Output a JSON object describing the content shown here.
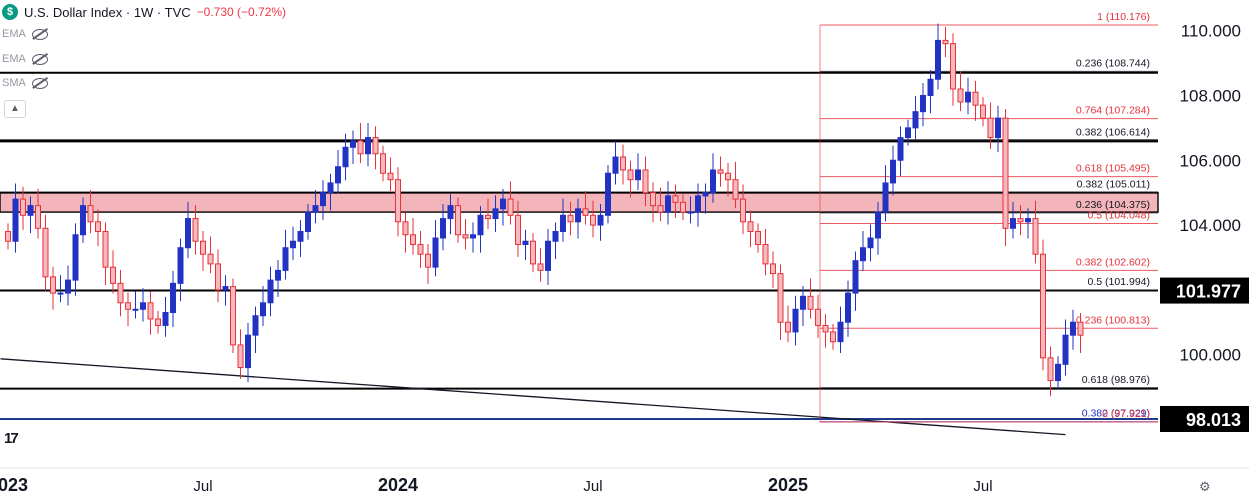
{
  "header": {
    "symbol_line": "U.S. Dollar Index · 1W · TVC",
    "change": "−0.730 (−0.72%)",
    "logo_letter": "$"
  },
  "indicators": [
    "EMA",
    "EMA",
    "SMA"
  ],
  "tv_logo": "17",
  "colors": {
    "up": "#2233c4",
    "down": "#e5323b",
    "zone": "#f2a8ae",
    "fib_red": "#e5323b",
    "fib_black": "#000000",
    "fib_blue": "#2233c4"
  },
  "chart_data": {
    "type": "candlestick",
    "ylim": [
      96.5,
      110.7
    ],
    "y_ticks": [
      "110.000",
      "108.000",
      "106.000",
      "104.000",
      "100.000"
    ],
    "x_ticks": [
      {
        "label": "2023",
        "i": 0
      },
      {
        "label": "Jul",
        "i": 26
      },
      {
        "label": "2024",
        "i": 52
      },
      {
        "label": "Jul",
        "i": 78
      },
      {
        "label": "2025",
        "i": 104
      },
      {
        "label": "Jul",
        "i": 130
      }
    ],
    "price_badges": [
      "101.977",
      "98.013"
    ],
    "horizontal_levels": [
      108.7,
      106.6,
      105.0,
      101.98,
      98.95
    ],
    "zone": [
      104.4,
      105.0
    ],
    "support_level": 98.013,
    "trendline": {
      "from": {
        "i": -1,
        "y": 99.87
      },
      "to": {
        "i": 141,
        "y": 97.53
      }
    },
    "fib_levels": [
      {
        "label": "1 (110.176)",
        "value": 110.176,
        "color": "red"
      },
      {
        "label": "0.236 (108.744)",
        "value": 108.744,
        "color": "black"
      },
      {
        "label": "0.764 (107.284)",
        "value": 107.284,
        "color": "red"
      },
      {
        "label": "0.382 (106.614)",
        "value": 106.614,
        "color": "black"
      },
      {
        "label": "0.618 (105.495)",
        "value": 105.495,
        "color": "red"
      },
      {
        "label": "0.382 (105.011)",
        "value": 105.011,
        "color": "black"
      },
      {
        "label": "0.236 (104.375)",
        "value": 104.375,
        "color": "black"
      },
      {
        "label": "0.5 (104.048)",
        "value": 104.048,
        "color": "red"
      },
      {
        "label": "0.382 (102.602)",
        "value": 102.602,
        "color": "red"
      },
      {
        "label": "0.5 (101.994)",
        "value": 101.994,
        "color": "black"
      },
      {
        "label": "0.236 (100.813)",
        "value": 100.813,
        "color": "red"
      },
      {
        "label": "0.618 (98.976)",
        "value": 98.976,
        "color": "black"
      },
      {
        "label": "0.382 (97.929)",
        "value": 97.929,
        "color": "blue"
      },
      {
        "label": "0 (97.921)",
        "value": 97.921,
        "color": "red"
      }
    ],
    "close": [
      103.5,
      104.8,
      104.3,
      104.6,
      103.9,
      102.4,
      101.9,
      101.9,
      102.3,
      103.7,
      104.6,
      104.1,
      103.8,
      102.7,
      102.2,
      101.6,
      101.4,
      101.4,
      101.6,
      101.1,
      100.9,
      101.3,
      102.2,
      103.3,
      104.2,
      103.5,
      103.1,
      102.8,
      102.0,
      102.1,
      100.3,
      99.6,
      100.6,
      101.2,
      101.6,
      102.3,
      102.6,
      103.3,
      103.5,
      103.8,
      104.4,
      104.6,
      105.0,
      105.3,
      105.8,
      106.4,
      106.6,
      106.2,
      106.7,
      106.2,
      105.6,
      105.4,
      104.1,
      103.7,
      103.4,
      103.1,
      102.7,
      103.6,
      104.2,
      104.6,
      103.7,
      103.6,
      103.7,
      104.3,
      104.2,
      104.5,
      104.8,
      104.3,
      103.4,
      103.5,
      102.8,
      102.6,
      103.5,
      103.8,
      104.3,
      104.1,
      104.5,
      104.3,
      104.0,
      104.3,
      105.6,
      106.1,
      105.7,
      105.4,
      105.7,
      105.0,
      104.6,
      104.4,
      104.9,
      104.7,
      104.4,
      104.4,
      104.9,
      105.0,
      105.7,
      105.6,
      105.4,
      104.8,
      104.1,
      103.8,
      103.4,
      102.8,
      102.5,
      101.0,
      100.7,
      101.4,
      101.8,
      101.4,
      100.9,
      100.7,
      100.4,
      101.0,
      101.9,
      102.9,
      103.3,
      103.6,
      104.4,
      105.3,
      106.0,
      106.7,
      107.0,
      107.5,
      108.0,
      108.5,
      109.7,
      109.6,
      108.2,
      107.8,
      108.1,
      107.7,
      107.3,
      106.7,
      107.3,
      103.9,
      104.2,
      104.1,
      104.2,
      103.1,
      99.9,
      99.2,
      99.7,
      100.6,
      101.0,
      100.6
    ],
    "ohlc_note": "weekly candles; first close listed is first visible candle"
  }
}
